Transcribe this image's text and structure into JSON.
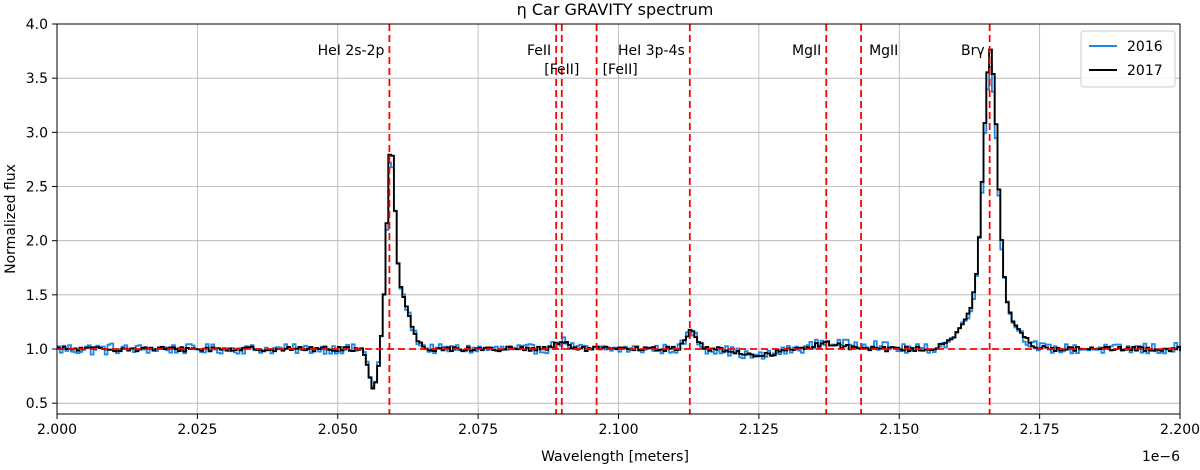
{
  "chart_data": {
    "type": "line",
    "title": "η Car GRAVITY spectrum",
    "xlabel": "Wavelength [meters]",
    "ylabel": "Normalized flux",
    "x_offset_label": "1e−6",
    "xlim": [
      2.0,
      2.2
    ],
    "ylim": [
      0.4,
      4.0
    ],
    "x_ticks": [
      2.0,
      2.025,
      2.05,
      2.075,
      2.1,
      2.125,
      2.15,
      2.175,
      2.2
    ],
    "x_tick_labels": [
      "2.000",
      "2.025",
      "2.050",
      "2.075",
      "2.100",
      "2.125",
      "2.150",
      "2.175",
      "2.200"
    ],
    "y_ticks": [
      0.5,
      1.0,
      1.5,
      2.0,
      2.5,
      3.0,
      3.5,
      4.0
    ],
    "y_tick_labels": [
      "0.5",
      "1.0",
      "1.5",
      "2.0",
      "2.5",
      "3.0",
      "3.5",
      "4.0"
    ],
    "grid": true,
    "legend_position": "top-right",
    "series": [
      {
        "name": "2016",
        "color": "#1e88e5",
        "step": 0.0005,
        "noise": 0.045,
        "features": [
          {
            "center": 2.0562,
            "amp": -0.38,
            "width": 0.0008
          },
          {
            "center": 2.0592,
            "amp": 1.35,
            "width": 0.0007
          },
          {
            "center": 2.0605,
            "amp": 0.55,
            "width": 0.0018
          },
          {
            "center": 2.0897,
            "amp": 0.07,
            "width": 0.0012
          },
          {
            "center": 2.1127,
            "amp": 0.16,
            "width": 0.001
          },
          {
            "center": 2.1245,
            "amp": -0.07,
            "width": 0.003
          },
          {
            "center": 2.137,
            "amp": 0.06,
            "width": 0.0025
          },
          {
            "center": 2.144,
            "amp": 0.05,
            "width": 0.0025
          },
          {
            "center": 2.166,
            "amp": 2.05,
            "width": 0.0012
          },
          {
            "center": 2.1657,
            "amp": 0.55,
            "width": 0.0035
          }
        ]
      },
      {
        "name": "2017",
        "color": "#000000",
        "step": 0.0005,
        "noise": 0.022,
        "features": [
          {
            "center": 2.0562,
            "amp": -0.4,
            "width": 0.0008
          },
          {
            "center": 2.0592,
            "amp": 1.45,
            "width": 0.0007
          },
          {
            "center": 2.0605,
            "amp": 0.55,
            "width": 0.0018
          },
          {
            "center": 2.0897,
            "amp": 0.06,
            "width": 0.0012
          },
          {
            "center": 2.1127,
            "amp": 0.17,
            "width": 0.001
          },
          {
            "center": 2.1245,
            "amp": -0.06,
            "width": 0.003
          },
          {
            "center": 2.137,
            "amp": 0.05,
            "width": 0.0025
          },
          {
            "center": 2.166,
            "amp": 2.2,
            "width": 0.0012
          },
          {
            "center": 2.1657,
            "amp": 0.55,
            "width": 0.0035
          }
        ]
      }
    ],
    "reference_lines": {
      "color": "#ff0000",
      "horizontal_y": 1.0,
      "vertical": [
        {
          "x": 2.0592,
          "label": "HeI 2s-2p"
        },
        {
          "x": 2.0889,
          "label": "FeII"
        },
        {
          "x": 2.0899,
          "label": "[FeII]"
        },
        {
          "x": 2.0961,
          "label": "[FeII]"
        },
        {
          "x": 2.1127,
          "label": "HeI 3p-4s"
        },
        {
          "x": 2.137,
          "label": "MgII"
        },
        {
          "x": 2.1432,
          "label": "MgII"
        },
        {
          "x": 2.1661,
          "label": "Brγ"
        }
      ]
    }
  }
}
